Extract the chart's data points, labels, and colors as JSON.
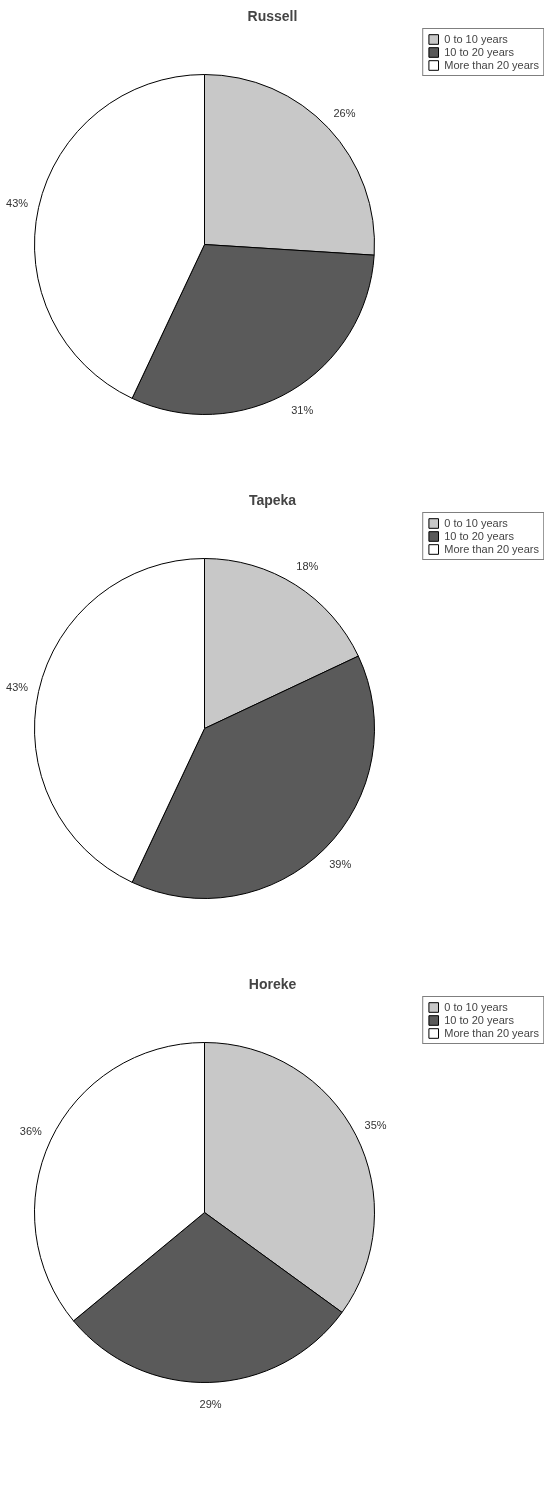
{
  "chart_data": [
    {
      "type": "pie",
      "title": "Russell",
      "categories": [
        "0 to 10 years",
        "10 to 20 years",
        "More than 20 years"
      ],
      "values": [
        26,
        31,
        43
      ],
      "value_labels": [
        "26%",
        "31%",
        "43%"
      ],
      "colors": [
        "#c8c8c8",
        "#5a5a5a",
        "#ffffff"
      ],
      "legend": "top right"
    },
    {
      "type": "pie",
      "title": "Tapeka",
      "categories": [
        "0 to 10 years",
        "10 to 20 years",
        "More than 20 years"
      ],
      "values": [
        18,
        39,
        43
      ],
      "value_labels": [
        "18%",
        "39%",
        "43%"
      ],
      "colors": [
        "#c8c8c8",
        "#5a5a5a",
        "#ffffff"
      ],
      "legend": "top right"
    },
    {
      "type": "pie",
      "title": "Horeke",
      "categories": [
        "0 to 10 years",
        "10 to 20 years",
        "More than 20 years"
      ],
      "values": [
        35,
        29,
        36
      ],
      "value_labels": [
        "35%",
        "29%",
        "36%"
      ],
      "colors": [
        "#c8c8c8",
        "#5a5a5a",
        "#ffffff"
      ],
      "legend": "top right"
    }
  ]
}
